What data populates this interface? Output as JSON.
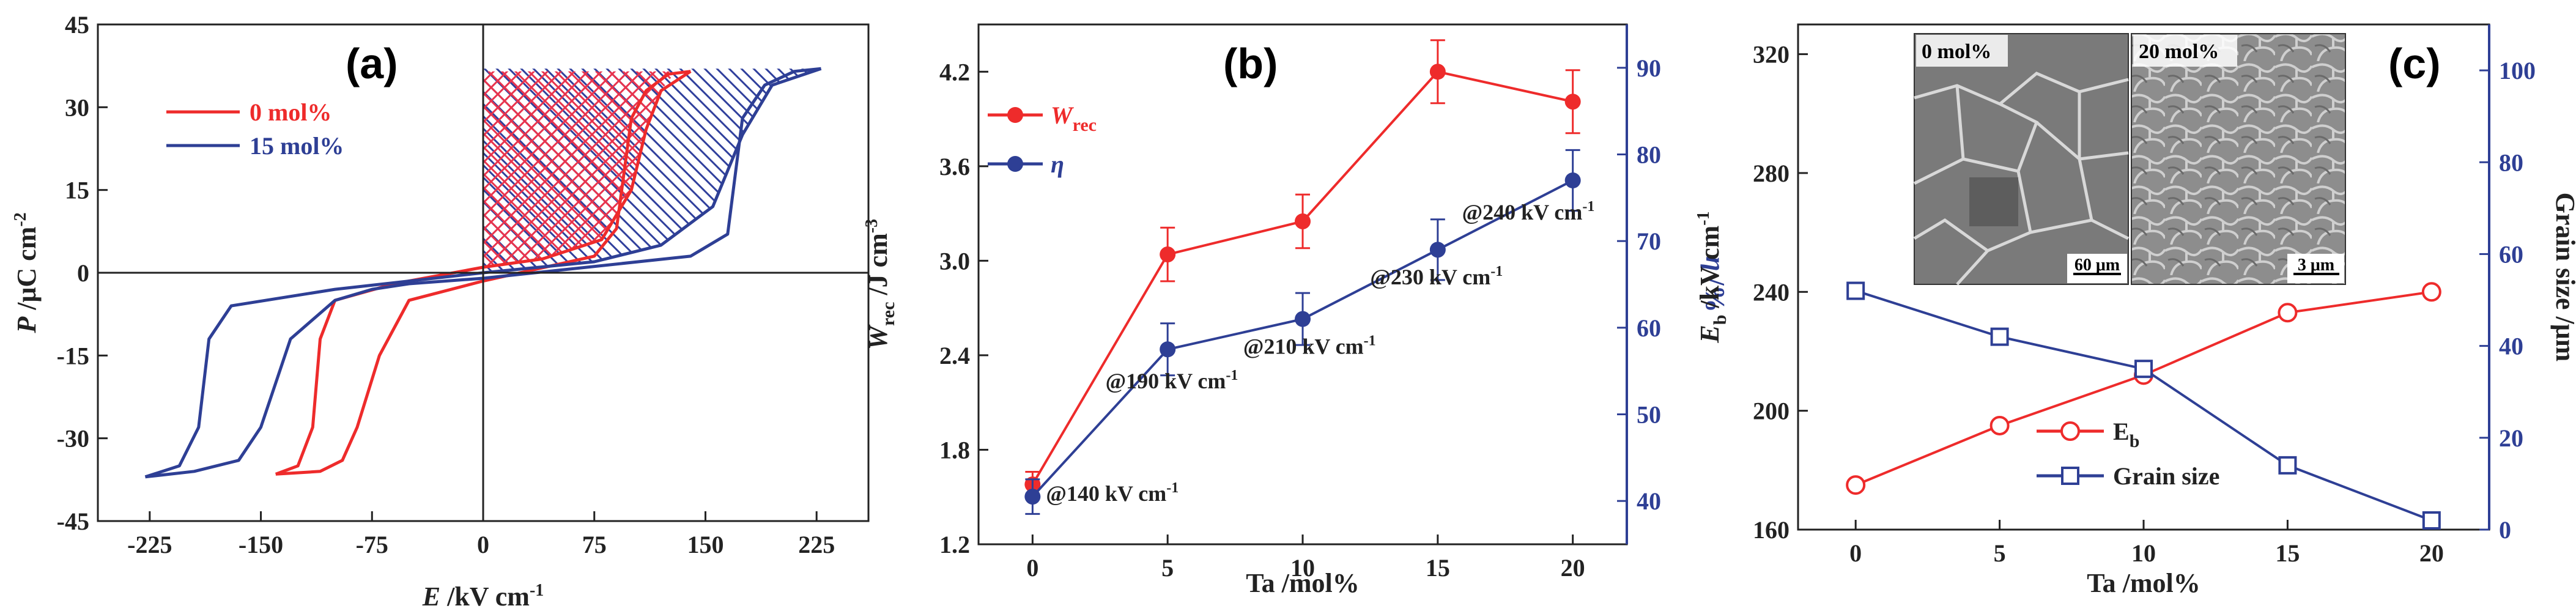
{
  "colors": {
    "red": "#ee2b2b",
    "blue": "#2e3f95",
    "black": "#222222",
    "hatch_red": "#e8334d",
    "hatch_blue": "#2f3f9c"
  },
  "chart_data": [
    {
      "panel_label": "(a)",
      "type": "line",
      "title": "",
      "xlabel_italic": "E",
      "xlabel_rest": " /kV cm",
      "xlabel_sup": "-1",
      "ylabel_italic": "P",
      "ylabel_rest": " /μC cm",
      "ylabel_sup": "-2",
      "xlim": [
        -260,
        260
      ],
      "ylim": [
        -45,
        45
      ],
      "xticks": [
        -225,
        -150,
        -75,
        0,
        75,
        150,
        225
      ],
      "xtick_labels": [
        "-225",
        "-150",
        "-75",
        "0",
        "75",
        "150",
        "225"
      ],
      "yticks": [
        -45,
        -30,
        -15,
        0,
        15,
        30,
        45
      ],
      "ytick_labels": [
        "-45",
        "-30",
        "-15",
        "0",
        "15",
        "30",
        "45"
      ],
      "legend": [
        "0 mol%",
        "15 mol%"
      ],
      "series": [
        {
          "name": "0 mol%",
          "color": "red",
          "hatch": "crosshatch",
          "upper": [
            [
              -140,
              -36.5
            ],
            [
              -125,
              -35
            ],
            [
              -115,
              -28
            ],
            [
              -110,
              -12
            ],
            [
              -100,
              -5
            ],
            [
              -60,
              -2
            ],
            [
              0,
              1
            ],
            [
              40,
              2.5
            ],
            [
              80,
              6
            ],
            [
              100,
              15
            ],
            [
              110,
              26
            ],
            [
              120,
              33
            ],
            [
              140,
              36.5
            ]
          ],
          "lower": [
            [
              140,
              36.5
            ],
            [
              125,
              36
            ],
            [
              110,
              33
            ],
            [
              100,
              28
            ],
            [
              90,
              8
            ],
            [
              75,
              3
            ],
            [
              0,
              -1.5
            ],
            [
              -50,
              -5
            ],
            [
              -70,
              -15
            ],
            [
              -85,
              -28
            ],
            [
              -95,
              -34
            ],
            [
              -110,
              -36
            ],
            [
              -140,
              -36.5
            ]
          ],
          "energy_region": [
            [
              0,
              36.5
            ],
            [
              130,
              36.5
            ],
            [
              120,
              33
            ],
            [
              112,
              28
            ],
            [
              100,
              15
            ],
            [
              80,
              6
            ],
            [
              40,
              2.5
            ],
            [
              0,
              1
            ]
          ]
        },
        {
          "name": "15 mol%",
          "color": "blue",
          "hatch": "diagonal",
          "upper": [
            [
              -228,
              -37
            ],
            [
              -205,
              -35
            ],
            [
              -192,
              -28
            ],
            [
              -185,
              -12
            ],
            [
              -170,
              -6
            ],
            [
              -100,
              -3
            ],
            [
              0,
              0
            ],
            [
              75,
              2
            ],
            [
              120,
              5
            ],
            [
              155,
              12
            ],
            [
              175,
              25
            ],
            [
              195,
              34
            ],
            [
              228,
              37
            ]
          ],
          "lower": [
            [
              228,
              37
            ],
            [
              210,
              36.5
            ],
            [
              190,
              34
            ],
            [
              175,
              28
            ],
            [
              165,
              7
            ],
            [
              140,
              3
            ],
            [
              0,
              -1
            ],
            [
              -50,
              -2
            ],
            [
              -75,
              -3
            ],
            [
              -100,
              -5
            ],
            [
              -130,
              -12
            ],
            [
              -150,
              -28
            ],
            [
              -165,
              -34
            ],
            [
              -195,
              -36
            ],
            [
              -228,
              -37
            ]
          ],
          "energy_region": [
            [
              0,
              37
            ],
            [
              228,
              37
            ],
            [
              195,
              34
            ],
            [
              175,
              25
            ],
            [
              155,
              12
            ],
            [
              120,
              5
            ],
            [
              75,
              2
            ],
            [
              0,
              0
            ]
          ]
        }
      ]
    },
    {
      "panel_label": "(b)",
      "type": "line",
      "xlabel": "Ta /mol%",
      "ylabel_left_italic": "W",
      "ylabel_left_sub": "rec",
      "ylabel_left_rest": " /J cm",
      "ylabel_left_sup": "-3",
      "ylabel_right_italic": "η",
      "ylabel_right_rest": " /%",
      "xlim": [
        -2,
        22
      ],
      "y_left_lim": [
        1.2,
        4.5
      ],
      "y_right_lim": [
        35,
        95
      ],
      "x": [
        0,
        5,
        10,
        15,
        20
      ],
      "xtick_labels": [
        "0",
        "5",
        "10",
        "15",
        "20"
      ],
      "y_left_ticks": [
        1.2,
        1.8,
        2.4,
        3.0,
        3.6,
        4.2
      ],
      "y_left_tick_labels": [
        "1.2",
        "1.8",
        "2.4",
        "3.0",
        "3.6",
        "4.2"
      ],
      "y_right_ticks": [
        40,
        50,
        60,
        70,
        80,
        90
      ],
      "y_right_tick_labels": [
        "40",
        "50",
        "60",
        "70",
        "80",
        "90"
      ],
      "series": [
        {
          "name_italic": "W",
          "name_sub": "rec",
          "axis": "left",
          "color": "red",
          "values": [
            1.58,
            3.04,
            3.25,
            4.2,
            4.01
          ],
          "errors": [
            0.08,
            0.17,
            0.17,
            0.2,
            0.2
          ]
        },
        {
          "name_italic": "η",
          "name_sub": "",
          "axis": "right",
          "color": "blue",
          "values": [
            40.5,
            57.5,
            61,
            69,
            77
          ],
          "errors": [
            2,
            3,
            3,
            3.5,
            3.5
          ]
        }
      ],
      "annotations": [
        {
          "text": "@140 kV cm",
          "sup": "-1",
          "x": 0.5,
          "y_right": 40
        },
        {
          "text": "@190 kV cm",
          "sup": "-1",
          "x": 2.7,
          "y_right": 53
        },
        {
          "text": "@210 kV cm",
          "sup": "-1",
          "x": 7.8,
          "y_right": 57
        },
        {
          "text": "@230 kV cm",
          "sup": "-1",
          "x": 12.5,
          "y_right": 65
        },
        {
          "text": "@240 kV cm",
          "sup": "-1",
          "x": 15.9,
          "y_right": 72.5
        }
      ]
    },
    {
      "panel_label": "(c)",
      "type": "line",
      "xlabel": "Ta /mol%",
      "ylabel_left_italic": "E",
      "ylabel_left_sub": "b",
      "ylabel_left_rest": " /kV cm",
      "ylabel_left_sup": "-1",
      "ylabel_right": "Grain size /μm",
      "xlim": [
        -2,
        22
      ],
      "y_left_lim": [
        160,
        330
      ],
      "y_right_lim": [
        0,
        110
      ],
      "x": [
        0,
        5,
        10,
        15,
        20
      ],
      "xtick_labels": [
        "0",
        "5",
        "10",
        "15",
        "20"
      ],
      "y_left_ticks": [
        160,
        200,
        240,
        280,
        320
      ],
      "y_left_tick_labels": [
        "160",
        "200",
        "240",
        "280",
        "320"
      ],
      "y_right_ticks": [
        0,
        20,
        40,
        60,
        80,
        100
      ],
      "y_right_tick_labels": [
        "0",
        "20",
        "40",
        "60",
        "80",
        "100"
      ],
      "series": [
        {
          "name": "E",
          "name_sub": "b",
          "axis": "left",
          "color": "red",
          "marker": "circle",
          "values": [
            175,
            195,
            212,
            233,
            240
          ]
        },
        {
          "name": "Grain size",
          "axis": "right",
          "color": "blue",
          "marker": "square",
          "values": [
            52,
            42,
            35,
            14,
            2
          ]
        }
      ],
      "insets": [
        {
          "label": "0 mol%",
          "scale_bar": "60 μm"
        },
        {
          "label": "20 mol%",
          "scale_bar": "3 μm"
        }
      ]
    }
  ]
}
